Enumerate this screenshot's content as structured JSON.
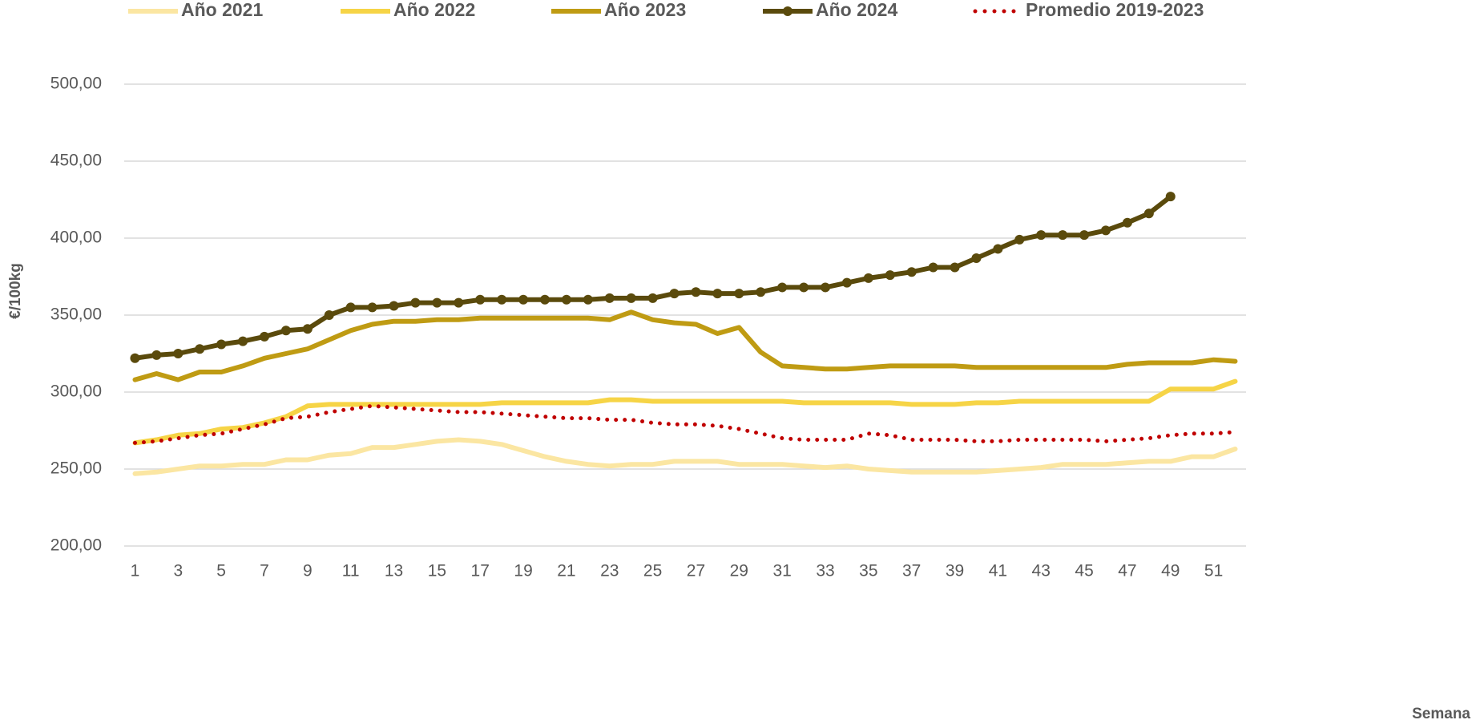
{
  "chart_data": {
    "type": "line",
    "y_label": "€/100kg",
    "x_label": "Semana",
    "categories": [
      1,
      null,
      3,
      null,
      5,
      null,
      7,
      null,
      9,
      null,
      11,
      null,
      13,
      null,
      15,
      null,
      17,
      null,
      19,
      null,
      21,
      null,
      23,
      null,
      25,
      null,
      27,
      null,
      29,
      null,
      31,
      null,
      33,
      null,
      35,
      null,
      37,
      null,
      39,
      null,
      41,
      null,
      43,
      null,
      45,
      null,
      47,
      null,
      49,
      null,
      51,
      null
    ],
    "ylim": [
      200,
      500
    ],
    "yticks": [
      {
        "value": 200,
        "label": "200,00"
      },
      {
        "value": 250,
        "label": "250,00"
      },
      {
        "value": 300,
        "label": "300,00"
      },
      {
        "value": 350,
        "label": "350,00"
      },
      {
        "value": 400,
        "label": "400,00"
      },
      {
        "value": 450,
        "label": "450,00"
      },
      {
        "value": 500,
        "label": "500,00"
      }
    ],
    "grid": true,
    "legend": "top",
    "series": [
      {
        "name": "Año 2021",
        "color": "#fbe6a2",
        "style": "solid",
        "marker": false,
        "values": [
          247,
          248,
          250,
          252,
          252,
          253,
          253,
          256,
          256,
          259,
          260,
          264,
          264,
          266,
          268,
          269,
          268,
          266,
          262,
          258,
          255,
          253,
          252,
          253,
          253,
          255,
          255,
          255,
          253,
          253,
          253,
          252,
          251,
          252,
          250,
          249,
          248,
          248,
          248,
          248,
          249,
          250,
          251,
          253,
          253,
          253,
          254,
          255,
          255,
          258,
          258,
          263
        ]
      },
      {
        "name": "Año 2022",
        "color": "#f6d446",
        "style": "solid",
        "marker": false,
        "values": [
          267,
          269,
          272,
          273,
          276,
          277,
          280,
          284,
          291,
          292,
          292,
          292,
          292,
          292,
          292,
          292,
          292,
          293,
          293,
          293,
          293,
          293,
          295,
          295,
          294,
          294,
          294,
          294,
          294,
          294,
          294,
          293,
          293,
          293,
          293,
          293,
          292,
          292,
          292,
          293,
          293,
          294,
          294,
          294,
          294,
          294,
          294,
          294,
          302,
          302,
          302,
          307
        ]
      },
      {
        "name": "Año 2023",
        "color": "#bf9b13",
        "style": "solid",
        "marker": false,
        "values": [
          308,
          312,
          308,
          313,
          313,
          317,
          322,
          325,
          328,
          334,
          340,
          344,
          346,
          346,
          347,
          347,
          348,
          348,
          348,
          348,
          348,
          348,
          347,
          352,
          347,
          345,
          344,
          338,
          342,
          326,
          317,
          316,
          315,
          315,
          316,
          317,
          317,
          317,
          317,
          316,
          316,
          316,
          316,
          316,
          316,
          316,
          318,
          319,
          319,
          319,
          321,
          320
        ]
      },
      {
        "name": "Año 2024",
        "color": "#5a4a0c",
        "style": "solid",
        "marker": true,
        "values": [
          322,
          324,
          325,
          328,
          331,
          333,
          336,
          340,
          341,
          350,
          355,
          355,
          356,
          358,
          358,
          358,
          360,
          360,
          360,
          360,
          360,
          360,
          361,
          361,
          361,
          364,
          365,
          364,
          364,
          365,
          368,
          368,
          368,
          371,
          374,
          376,
          378,
          381,
          381,
          387,
          393,
          399,
          402,
          402,
          402,
          405,
          410,
          416,
          427,
          null,
          null,
          null
        ]
      },
      {
        "name": "Promedio 2019-2023",
        "color": "#c00000",
        "style": "dotted",
        "marker": false,
        "values": [
          267,
          268,
          270,
          272,
          273,
          276,
          279,
          283,
          284,
          287,
          289,
          291,
          290,
          289,
          288,
          287,
          287,
          286,
          285,
          284,
          283,
          283,
          282,
          282,
          280,
          279,
          279,
          278,
          276,
          273,
          270,
          269,
          269,
          269,
          273,
          272,
          269,
          269,
          269,
          268,
          268,
          269,
          269,
          269,
          269,
          268,
          269,
          270,
          272,
          273,
          273,
          274
        ]
      }
    ]
  }
}
